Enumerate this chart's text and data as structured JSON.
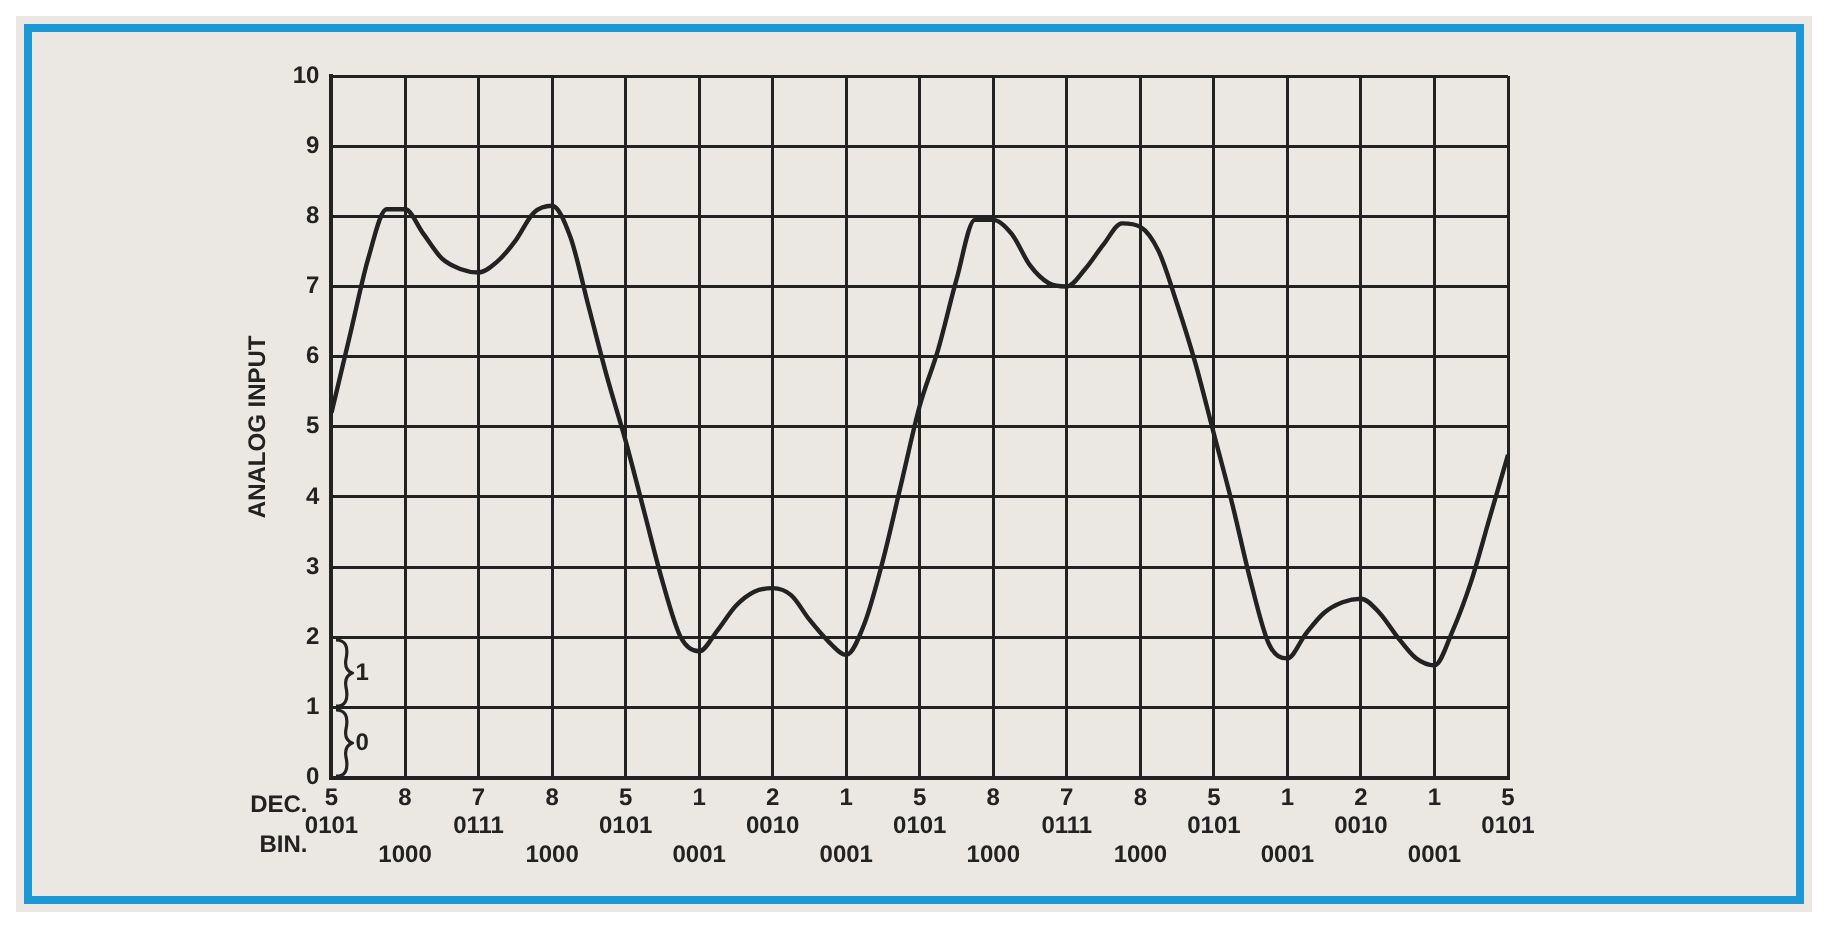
{
  "chart_data": {
    "type": "line",
    "ylabel": "ANALOG INPUT",
    "ylim": [
      0,
      10
    ],
    "yticks": [
      0,
      1,
      2,
      3,
      4,
      5,
      6,
      7,
      8,
      9,
      10
    ],
    "categories": [
      "5\n0101",
      null,
      null,
      null,
      "8\n1000",
      null,
      null,
      null,
      "7\n0111",
      null,
      null,
      null,
      "8\n1000",
      null,
      null,
      null,
      "5\n0101",
      null,
      null,
      null,
      "1\n0001",
      null,
      null,
      null,
      "2\n0010",
      null,
      null,
      null,
      "1\n0001",
      null,
      null,
      null,
      "5\n0101",
      null,
      null,
      null,
      "8\n1000",
      null,
      null,
      null,
      "7\n0111",
      null,
      null,
      null,
      "8\n1000",
      null,
      null,
      null,
      "5\n0101",
      null,
      null,
      null,
      "1\n0001",
      null,
      null,
      null,
      "2\n0010",
      null,
      null,
      null,
      "1\n0001",
      null,
      null,
      null,
      "5\n0101"
    ],
    "grid": true,
    "legend": false,
    "marker": "none",
    "line_style": "solid",
    "annotations": [
      "DEC.",
      "BIN.",
      "1",
      "0"
    ],
    "series": [
      {
        "color": "#222222",
        "values": [
          5.2,
          6.3,
          7.4,
          8.1,
          8.1,
          7.75,
          7.4,
          7.25,
          7.2,
          7.35,
          7.65,
          8.05,
          8.15,
          7.7,
          6.7,
          5.7,
          4.8,
          3.8,
          2.8,
          2.0,
          1.8,
          2.1,
          2.45,
          2.65,
          2.7,
          2.6,
          2.25,
          1.95,
          1.75,
          2.2,
          3.1,
          4.2,
          5.3,
          6.1,
          7.1,
          7.95,
          7.95,
          7.75,
          7.3,
          7.05,
          7.0,
          7.25,
          7.6,
          7.9,
          7.85,
          7.5,
          6.75,
          5.9,
          4.9,
          3.9,
          2.8,
          1.9,
          1.7,
          2.05,
          2.35,
          2.5,
          2.55,
          2.35,
          2.0,
          1.7,
          1.6,
          2.1,
          2.8,
          3.7,
          4.6
        ]
      }
    ]
  }
}
